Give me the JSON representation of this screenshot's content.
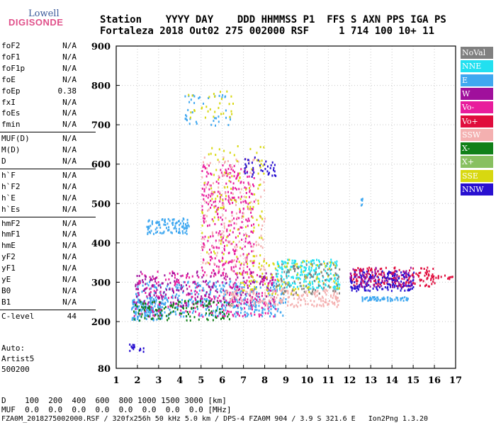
{
  "logo": {
    "line1": "Lowell",
    "line2": "DIGISONDE"
  },
  "header": {
    "labels": "Station    YYYY DAY    DDD HHMMSS P1  FFS S AXN PPS IGA PS",
    "values": "Fortaleza 2018 Out02 275 002000 RSF     1 714 100 10+ 11"
  },
  "params": [
    {
      "name": "foF2",
      "value": "N/A"
    },
    {
      "name": "foF1",
      "value": "N/A"
    },
    {
      "name": "foF1p",
      "value": "N/A"
    },
    {
      "name": "foE",
      "value": "N/A"
    },
    {
      "name": "foEp",
      "value": "0.38"
    },
    {
      "name": "fxI",
      "value": "N/A"
    },
    {
      "name": "foEs",
      "value": "N/A"
    },
    {
      "name": "fmin",
      "value": "N/A"
    },
    {
      "name": "MUF(D)",
      "value": "N/A"
    },
    {
      "name": "M(D)",
      "value": "N/A"
    },
    {
      "name": "D",
      "value": "N/A"
    },
    {
      "name": "h`F",
      "value": "N/A"
    },
    {
      "name": "h`F2",
      "value": "N/A"
    },
    {
      "name": "h`E",
      "value": "N/A"
    },
    {
      "name": "h`Es",
      "value": "N/A"
    },
    {
      "name": "hmF2",
      "value": "N/A"
    },
    {
      "name": "hmF1",
      "value": "N/A"
    },
    {
      "name": "hmE",
      "value": "N/A"
    },
    {
      "name": "yF2",
      "value": "N/A"
    },
    {
      "name": "yF1",
      "value": "N/A"
    },
    {
      "name": "yE",
      "value": "N/A"
    },
    {
      "name": "B0",
      "value": "N/A"
    },
    {
      "name": "B1",
      "value": "N/A"
    },
    {
      "name": "C-level",
      "value": "44"
    }
  ],
  "auto": {
    "line1": "Auto:",
    "line2": "Artist5",
    "line3": "500200"
  },
  "legend": [
    {
      "label": "NoVal",
      "color": "#808080"
    },
    {
      "label": "NNE",
      "color": "#22e0f0"
    },
    {
      "label": "E",
      "color": "#40a8f0"
    },
    {
      "label": "W",
      "color": "#a0109c"
    },
    {
      "label": "Vo-",
      "color": "#e81c9c"
    },
    {
      "label": "Vo+",
      "color": "#e00c3c"
    },
    {
      "label": "SSW",
      "color": "#f4b0b0"
    },
    {
      "label": "X-",
      "color": "#108018"
    },
    {
      "label": "X+",
      "color": "#88c060"
    },
    {
      "label": "SSE",
      "color": "#d8d810"
    },
    {
      "label": "NNW",
      "color": "#2810d0"
    }
  ],
  "footer": {
    "dline": "D    100  200  400  600  800 1000 1500 3000 [km]",
    "mufline": "MUF  0.0  0.0  0.0  0.0  0.0  0.0  0.0  0.0 [MHz]",
    "fileline": "FZA0M_2018275002000.RSF / 320fx256h 50 kHz 5.0 km / DPS-4 FZA0M 904 / 3.9 S 321.6 E   Ion2Png 1.3.20"
  },
  "chart_data": {
    "type": "scatter",
    "xlim": [
      1,
      17
    ],
    "ylim": [
      80,
      900
    ],
    "xticks": [
      1,
      2,
      3,
      4,
      5,
      6,
      7,
      8,
      9,
      10,
      11,
      12,
      13,
      14,
      15,
      16,
      17
    ],
    "yticks": [
      80,
      200,
      300,
      400,
      500,
      600,
      700,
      800,
      900
    ],
    "grid": true,
    "legend_position": "right",
    "clusters": [
      {
        "series": "E",
        "x": [
          1.8,
          9.0
        ],
        "y": [
          215,
          305
        ],
        "n": 420
      },
      {
        "series": "E",
        "x": [
          1.7,
          3.2
        ],
        "y": [
          205,
          260
        ],
        "n": 120
      },
      {
        "series": "Vo-",
        "x": [
          1.8,
          8.5
        ],
        "y": [
          215,
          330
        ],
        "n": 260
      },
      {
        "series": "W",
        "x": [
          1.8,
          8.5
        ],
        "y": [
          240,
          330
        ],
        "n": 200
      },
      {
        "series": "X-",
        "x": [
          1.8,
          6.5
        ],
        "y": [
          205,
          255
        ],
        "n": 120
      },
      {
        "series": "SSW",
        "x": [
          6.0,
          11.5
        ],
        "y": [
          240,
          285
        ],
        "n": 200
      },
      {
        "series": "NNE",
        "x": [
          8.5,
          11.5
        ],
        "y": [
          285,
          360
        ],
        "n": 220
      },
      {
        "series": "SSE",
        "x": [
          6.5,
          11.5
        ],
        "y": [
          270,
          360
        ],
        "n": 110
      },
      {
        "series": "NoVal",
        "x": [
          8.5,
          11.5
        ],
        "y": [
          270,
          350
        ],
        "n": 90
      },
      {
        "series": "Vo+",
        "x": [
          12.0,
          16.0
        ],
        "y": [
          290,
          340
        ],
        "n": 180
      },
      {
        "series": "NNW",
        "x": [
          12.0,
          15.0
        ],
        "y": [
          280,
          330
        ],
        "n": 170
      },
      {
        "series": "W",
        "x": [
          12.0,
          15.0
        ],
        "y": [
          290,
          340
        ],
        "n": 80
      },
      {
        "series": "E",
        "x": [
          12.5,
          14.8
        ],
        "y": [
          255,
          265
        ],
        "n": 60
      },
      {
        "series": "Vo+",
        "x": [
          15.5,
          17.0
        ],
        "y": [
          310,
          320
        ],
        "n": 20
      },
      {
        "series": "E",
        "x": [
          2.4,
          4.4
        ],
        "y": [
          425,
          465
        ],
        "n": 100
      },
      {
        "series": "Vo-",
        "x": [
          5.0,
          7.5
        ],
        "y": [
          320,
          600
        ],
        "n": 320
      },
      {
        "series": "SSW",
        "x": [
          5.0,
          8.0
        ],
        "y": [
          320,
          620
        ],
        "n": 140
      },
      {
        "series": "SSE",
        "x": [
          5.0,
          8.0
        ],
        "y": [
          350,
          650
        ],
        "n": 120
      },
      {
        "series": "NNW",
        "x": [
          7.0,
          8.5
        ],
        "y": [
          570,
          620
        ],
        "n": 40
      },
      {
        "series": "E",
        "x": [
          4.2,
          6.5
        ],
        "y": [
          700,
          780
        ],
        "n": 40
      },
      {
        "series": "SSE",
        "x": [
          4.2,
          6.5
        ],
        "y": [
          720,
          790
        ],
        "n": 30
      },
      {
        "series": "NNW",
        "x": [
          1.6,
          2.3
        ],
        "y": [
          125,
          145
        ],
        "n": 15
      },
      {
        "series": "E",
        "x": [
          12.5,
          12.7
        ],
        "y": [
          495,
          515
        ],
        "n": 6
      }
    ]
  }
}
